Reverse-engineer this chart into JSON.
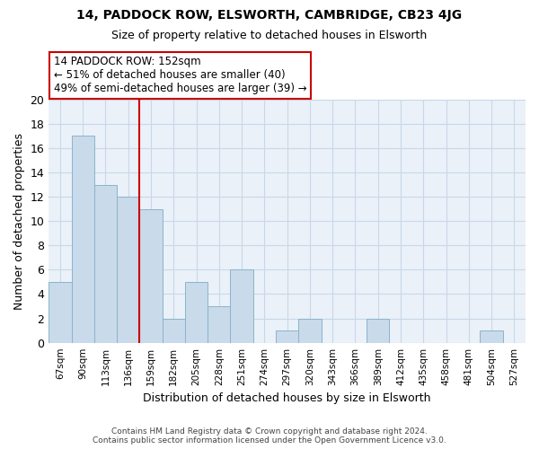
{
  "title": "14, PADDOCK ROW, ELSWORTH, CAMBRIDGE, CB23 4JG",
  "subtitle": "Size of property relative to detached houses in Elsworth",
  "xlabel": "Distribution of detached houses by size in Elsworth",
  "ylabel": "Number of detached properties",
  "categories": [
    "67sqm",
    "90sqm",
    "113sqm",
    "136sqm",
    "159sqm",
    "182sqm",
    "205sqm",
    "228sqm",
    "251sqm",
    "274sqm",
    "297sqm",
    "320sqm",
    "343sqm",
    "366sqm",
    "389sqm",
    "412sqm",
    "435sqm",
    "458sqm",
    "481sqm",
    "504sqm",
    "527sqm"
  ],
  "values": [
    5,
    17,
    13,
    12,
    11,
    2,
    5,
    3,
    6,
    0,
    1,
    2,
    0,
    0,
    2,
    0,
    0,
    0,
    0,
    1,
    0
  ],
  "bar_color": "#c9daea",
  "bar_edge_color": "#8ab4cc",
  "vline_x": 4,
  "vline_color": "#cc0000",
  "annotation_line1": "14 PADDOCK ROW: 152sqm",
  "annotation_line2": "← 51% of detached houses are smaller (40)",
  "annotation_line3": "49% of semi-detached houses are larger (39) →",
  "annotation_box_color": "#ffffff",
  "annotation_box_edge": "#cc0000",
  "ylim": [
    0,
    20
  ],
  "yticks": [
    0,
    2,
    4,
    6,
    8,
    10,
    12,
    14,
    16,
    18,
    20
  ],
  "footer": "Contains HM Land Registry data © Crown copyright and database right 2024.\nContains public sector information licensed under the Open Government Licence v3.0.",
  "background_color": "#ffffff",
  "plot_bg_color": "#eaf1f8",
  "grid_color": "#c8d8e8"
}
